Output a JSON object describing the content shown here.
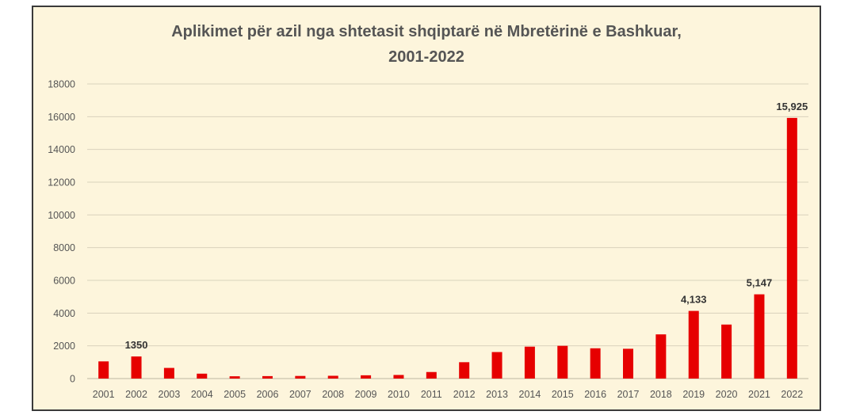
{
  "chart_data": {
    "type": "bar",
    "title_line1": "Aplikimet për azil nga shtetasit shqiptarë në Mbretërinë e Bashkuar,",
    "title_line2": "2001-2022",
    "xlabel": "",
    "ylabel": "",
    "categories": [
      "2001",
      "2002",
      "2003",
      "2004",
      "2005",
      "2006",
      "2007",
      "2008",
      "2009",
      "2010",
      "2011",
      "2012",
      "2013",
      "2014",
      "2015",
      "2016",
      "2017",
      "2018",
      "2019",
      "2020",
      "2021",
      "2022"
    ],
    "values": [
      1050,
      1350,
      650,
      300,
      140,
      150,
      160,
      170,
      200,
      220,
      400,
      1000,
      1620,
      1950,
      2000,
      1850,
      1820,
      2700,
      4133,
      3300,
      5147,
      15925
    ],
    "data_labels": {
      "1": "1350",
      "18": "4,133",
      "20": "5,147",
      "21": "15,925"
    },
    "yticks": [
      "0",
      "2000",
      "4000",
      "6000",
      "8000",
      "10000",
      "12000",
      "14000",
      "16000",
      "18000"
    ],
    "ylim": [
      0,
      18000
    ],
    "grid": true,
    "legend": "none",
    "colors": {
      "bar": "#e60000",
      "background": "#fdf5dc",
      "grid": "#d9d2bd"
    }
  }
}
